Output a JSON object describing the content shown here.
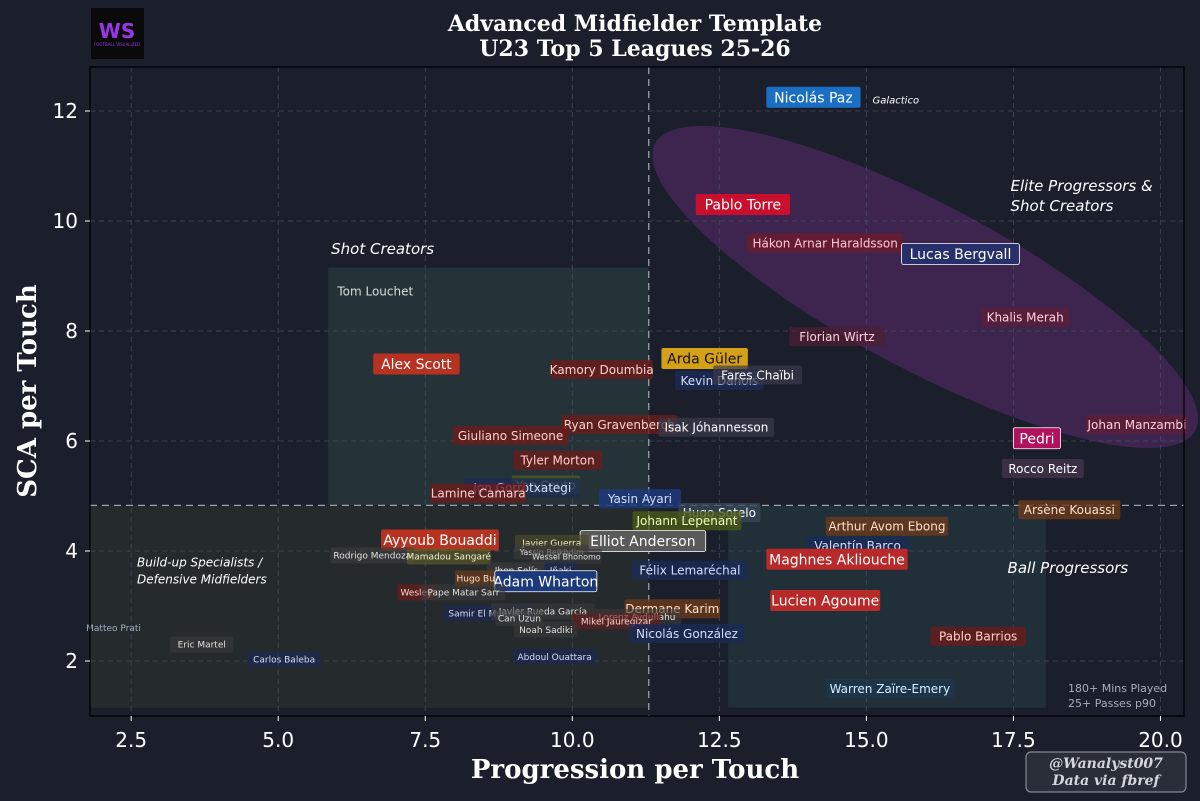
{
  "logo": {
    "text": "WS",
    "subtext": "FOOTBALL VISUALIZED"
  },
  "chart_data": {
    "type": "scatter",
    "title": "Advanced Midfielder Template",
    "subtitle": "U23 Top 5 Leagues 25-26",
    "xlabel": "Progression per Touch",
    "ylabel": "SCA per Touch",
    "xlim": [
      1.8,
      20.4
    ],
    "ylim": [
      1.0,
      12.8
    ],
    "xticks": [
      "2.5",
      "5.0",
      "7.5",
      "10.0",
      "12.5",
      "15.0",
      "17.5",
      "20.0"
    ],
    "xtick_values": [
      2.5,
      5.0,
      7.5,
      10.0,
      12.5,
      15.0,
      17.5,
      20.0
    ],
    "yticks": [
      "2",
      "4",
      "6",
      "8",
      "10",
      "12"
    ],
    "ytick_values": [
      2,
      4,
      6,
      8,
      10,
      12
    ],
    "grid": true,
    "x_threshold": 11.3,
    "y_threshold": 4.83,
    "zones": [
      {
        "name": "Shot Creators",
        "x0": 5.85,
        "x1": 11.3,
        "y0": 4.83,
        "y1": 9.15,
        "color": "#2a3a3c"
      },
      {
        "name": "Build-up Specialists",
        "x0": 1.8,
        "x1": 11.3,
        "y0": 1.15,
        "y1": 4.83,
        "color": "#2a2f2c"
      },
      {
        "name": "Ball Progressors",
        "x0": 12.65,
        "x1": 18.05,
        "y0": 1.15,
        "y1": 4.83,
        "color": "#24363c"
      }
    ],
    "ellipse": {
      "cx": 16.0,
      "cy": 8.8,
      "rx": 5.2,
      "ry": 2.55,
      "angle_deg": -28,
      "color": "#5a2a6e"
    },
    "region_labels": [
      {
        "lines": [
          "Shot Creators"
        ],
        "x": 5.9,
        "y": 9.4
      },
      {
        "lines": [
          "Elite Progressors &",
          "Shot Creators"
        ],
        "x": 17.45,
        "y": 10.55
      },
      {
        "lines": [
          "Build-up Specialists /",
          "Defensive Midfielders"
        ],
        "x": 2.6,
        "y": 3.72
      },
      {
        "lines": [
          "Ball Progressors"
        ],
        "x": 17.4,
        "y": 3.6
      }
    ],
    "legend_note": [
      "180+ Mins Played",
      "25+ Passes p90"
    ],
    "players": [
      {
        "name": "Nicolás Paz",
        "x": 14.1,
        "y": 12.25,
        "size": 14,
        "bg": "#1a6fc4",
        "fg": "#ffffff",
        "op": 1
      },
      {
        "name": "Galactico",
        "x": 15.5,
        "y": 12.2,
        "size": 10,
        "bg": "none",
        "fg": "#ffffff",
        "op": 0,
        "italic": true
      },
      {
        "name": "Pablo Torre",
        "x": 12.9,
        "y": 10.3,
        "size": 14,
        "bg": "#c8102e",
        "fg": "#ffffff",
        "op": 1
      },
      {
        "name": "Hákon Arnar Haraldsson",
        "x": 14.3,
        "y": 9.6,
        "size": 12,
        "bg": "#6b1c2c",
        "fg": "#ffc8d0",
        "op": 0.8
      },
      {
        "name": "Lucas Bergvall",
        "x": 16.6,
        "y": 9.4,
        "size": 14,
        "bg": "#27306a",
        "fg": "#ffffff",
        "op": 1,
        "stroke": "#ffffff"
      },
      {
        "name": "Khalis Merah",
        "x": 17.7,
        "y": 8.25,
        "size": 12,
        "bg": "#5d1e36",
        "fg": "#ffd0de",
        "op": 0.8
      },
      {
        "name": "Florian Wirtz",
        "x": 14.5,
        "y": 7.9,
        "size": 12,
        "bg": "#4f1d33",
        "fg": "#ffd0de",
        "op": 0.75
      },
      {
        "name": "Alex Scott",
        "x": 7.35,
        "y": 7.4,
        "size": 14,
        "bg": "#b83222",
        "fg": "#ffffff",
        "op": 1
      },
      {
        "name": "Arda Güler",
        "x": 12.25,
        "y": 7.5,
        "size": 14,
        "bg": "#d4a017",
        "fg": "#111111",
        "op": 1
      },
      {
        "name": "Kamory Doumbia",
        "x": 10.5,
        "y": 7.3,
        "size": 12,
        "bg": "#6b1c1c",
        "fg": "#ffd0c8",
        "op": 0.8
      },
      {
        "name": "Kevin Danois",
        "x": 12.5,
        "y": 7.1,
        "size": 12,
        "bg": "#1c2a56",
        "fg": "#d4dcff",
        "op": 0.8
      },
      {
        "name": "Fares Chaïbi",
        "x": 13.15,
        "y": 7.2,
        "size": 12,
        "bg": "#3a3a4a",
        "fg": "#ffffff",
        "op": 0.7
      },
      {
        "name": "Johan Manzambi",
        "x": 19.6,
        "y": 6.3,
        "size": 12,
        "bg": "#5d1e36",
        "fg": "#ffd0de",
        "op": 0.8
      },
      {
        "name": "Pedri",
        "x": 17.9,
        "y": 6.05,
        "size": 14,
        "bg": "#b0125e",
        "fg": "#ffffff",
        "op": 1,
        "stroke": "#ffffff"
      },
      {
        "name": "Rocco Reitz",
        "x": 18.0,
        "y": 5.5,
        "size": 12,
        "bg": "#46354e",
        "fg": "#ffffff",
        "op": 0.75
      },
      {
        "name": "Ryan Gravenberch",
        "x": 10.8,
        "y": 6.3,
        "size": 12,
        "bg": "#6b1c1c",
        "fg": "#ffd0c8",
        "op": 0.8
      },
      {
        "name": "Isak Jóhannesson",
        "x": 12.45,
        "y": 6.25,
        "size": 12,
        "bg": "#3a3a4a",
        "fg": "#ffffff",
        "op": 0.75
      },
      {
        "name": "Giuliano Simeone",
        "x": 8.95,
        "y": 6.1,
        "size": 12,
        "bg": "#6b1c1c",
        "fg": "#ffd0c8",
        "op": 0.8
      },
      {
        "name": "Tyler Morton",
        "x": 9.75,
        "y": 5.65,
        "size": 12,
        "bg": "#6b1c1c",
        "fg": "#ffd0c8",
        "op": 0.8
      },
      {
        "name": "Yan Couto",
        "x": 9.55,
        "y": 5.2,
        "size": 12,
        "bg": "#4a5a1a",
        "fg": "#f0ffb0",
        "op": 0.8
      },
      {
        "name": "Jon Gorrotxategi",
        "x": 9.15,
        "y": 5.15,
        "size": 12,
        "bg": "#1c2a56",
        "fg": "#d4dcff",
        "op": 0.8
      },
      {
        "name": "Lamine Camara",
        "x": 8.4,
        "y": 5.05,
        "size": 12,
        "bg": "#6b1c1c",
        "fg": "#ffd0c8",
        "op": 0.8
      },
      {
        "name": "Yasin Ayari",
        "x": 11.15,
        "y": 4.95,
        "size": 12,
        "bg": "#1c3a7a",
        "fg": "#d4dcff",
        "op": 0.85
      },
      {
        "name": "Hugo Sotelo",
        "x": 12.5,
        "y": 4.7,
        "size": 12,
        "bg": "#3a4a5a",
        "fg": "#ffffff",
        "op": 0.75
      },
      {
        "name": "Johann Lepenant",
        "x": 11.95,
        "y": 4.55,
        "size": 12,
        "bg": "#4a5a1a",
        "fg": "#f0ffb0",
        "op": 0.8
      },
      {
        "name": "Arsène Kouassi",
        "x": 18.45,
        "y": 4.75,
        "size": 12,
        "bg": "#6b3a1c",
        "fg": "#ffe0c8",
        "op": 0.8
      },
      {
        "name": "Arthur Avom Ebong",
        "x": 15.35,
        "y": 4.45,
        "size": 12,
        "bg": "#6b3a1c",
        "fg": "#ffe0c8",
        "op": 0.8
      },
      {
        "name": "Ayyoub Bouaddi",
        "x": 7.75,
        "y": 4.2,
        "size": 14,
        "bg": "#b83222",
        "fg": "#ffffff",
        "op": 1
      },
      {
        "name": "Elliot Anderson",
        "x": 11.2,
        "y": 4.18,
        "size": 14,
        "bg": "#5a5a5a",
        "fg": "#ffffff",
        "op": 1,
        "stroke": "#ffffff"
      },
      {
        "name": "Javier Guerra",
        "x": 9.65,
        "y": 4.15,
        "size": 9,
        "bg": "#4a4a2a",
        "fg": "#f0f0d0",
        "op": 0.7
      },
      {
        "name": "Valentín Barco",
        "x": 14.85,
        "y": 4.1,
        "size": 12,
        "bg": "#1c2a56",
        "fg": "#d4dcff",
        "op": 0.8
      },
      {
        "name": "Maghnes Akliouche",
        "x": 14.5,
        "y": 3.85,
        "size": 14,
        "bg": "#b82a2a",
        "fg": "#ffffff",
        "op": 1
      },
      {
        "name": "Rodrigo Mendoza",
        "x": 6.6,
        "y": 3.92,
        "size": 9,
        "bg": "#3a3a3a",
        "fg": "#e0e0e0",
        "op": 0.7
      },
      {
        "name": "Mamadou Sangaré",
        "x": 7.9,
        "y": 3.9,
        "size": 9,
        "bg": "#5a5a2a",
        "fg": "#f0f0d0",
        "op": 0.7
      },
      {
        "name": "Yassin Belkhdim",
        "x": 9.65,
        "y": 3.98,
        "size": 8,
        "bg": "#3a3a3a",
        "fg": "#e0e0e0",
        "op": 0.6
      },
      {
        "name": "Wessel Bhonomo",
        "x": 9.9,
        "y": 3.9,
        "size": 8,
        "bg": "#3a3a3a",
        "fg": "#e0e0e0",
        "op": 0.6
      },
      {
        "name": "Jhon Solís",
        "x": 9.05,
        "y": 3.65,
        "size": 9,
        "bg": "#3a3a3a",
        "fg": "#e0e0e0",
        "op": 0.7
      },
      {
        "name": "Iñaki",
        "x": 9.8,
        "y": 3.65,
        "size": 9,
        "bg": "#1c2a56",
        "fg": "#d4dcff",
        "op": 0.6
      },
      {
        "name": "Félix Lemaréchal",
        "x": 12.0,
        "y": 3.65,
        "size": 12,
        "bg": "#1c2a56",
        "fg": "#d4dcff",
        "op": 0.8
      },
      {
        "name": "Hugo Bueno",
        "x": 8.5,
        "y": 3.5,
        "size": 9,
        "bg": "#6b3a1c",
        "fg": "#ffe0c8",
        "op": 0.7
      },
      {
        "name": "Adam Wharton",
        "x": 9.55,
        "y": 3.45,
        "size": 14,
        "bg": "#1c3a7a",
        "fg": "#ffffff",
        "op": 1,
        "stroke": "#ffffff"
      },
      {
        "name": "Wesley",
        "x": 7.35,
        "y": 3.25,
        "size": 9,
        "bg": "#6b1c1c",
        "fg": "#ffd0c8",
        "op": 0.7
      },
      {
        "name": "Pape Matar Sarr",
        "x": 8.15,
        "y": 3.25,
        "size": 9,
        "bg": "#3a3a3a",
        "fg": "#e0e0e0",
        "op": 0.6
      },
      {
        "name": "Lucien Agoume",
        "x": 14.3,
        "y": 3.1,
        "size": 14,
        "bg": "#b82a2a",
        "fg": "#ffffff",
        "op": 1
      },
      {
        "name": "Dermane Karim",
        "x": 11.7,
        "y": 2.95,
        "size": 12,
        "bg": "#6b3a1c",
        "fg": "#ffe0c8",
        "op": 0.8
      },
      {
        "name": "Samir El Mourabet",
        "x": 8.6,
        "y": 2.87,
        "size": 9,
        "bg": "#1c2a56",
        "fg": "#d4dcff",
        "op": 0.6
      },
      {
        "name": "Javier Rueda García",
        "x": 9.5,
        "y": 2.9,
        "size": 9,
        "bg": "#3a3a3a",
        "fg": "#e0e0e0",
        "op": 0.6
      },
      {
        "name": "Can Uzun",
        "x": 9.1,
        "y": 2.78,
        "size": 9,
        "bg": "#3a3a3a",
        "fg": "#e0e0e0",
        "op": 0.6
      },
      {
        "name": "Lorenz Avdullahu",
        "x": 11.1,
        "y": 2.8,
        "size": 9,
        "bg": "#3a3a3a",
        "fg": "#e0e0e0",
        "op": 0.6
      },
      {
        "name": "Mikel Jauregizar",
        "x": 10.75,
        "y": 2.72,
        "size": 9,
        "bg": "#6b1c1c",
        "fg": "#ffd0c8",
        "op": 0.6
      },
      {
        "name": "Noah Sadiki",
        "x": 9.55,
        "y": 2.57,
        "size": 9,
        "bg": "#3a3a3a",
        "fg": "#e0e0e0",
        "op": 0.6
      },
      {
        "name": "Nicolás González",
        "x": 11.95,
        "y": 2.5,
        "size": 12,
        "bg": "#1c2a56",
        "fg": "#d4dcff",
        "op": 0.8
      },
      {
        "name": "Pablo Barrios",
        "x": 16.9,
        "y": 2.45,
        "size": 12,
        "bg": "#6b1c1c",
        "fg": "#ffd0c8",
        "op": 0.8
      },
      {
        "name": "Matteo Prati",
        "x": 2.2,
        "y": 2.6,
        "size": 9,
        "bg": "none",
        "fg": "#9eb0c8",
        "op": 0
      },
      {
        "name": "Eric Martel",
        "x": 3.7,
        "y": 2.3,
        "size": 9,
        "bg": "#3a3a3a",
        "fg": "#e0e0e0",
        "op": 0.6
      },
      {
        "name": "Carlos Baleba",
        "x": 5.1,
        "y": 2.03,
        "size": 9,
        "bg": "#1c2a56",
        "fg": "#d4dcff",
        "op": 0.6
      },
      {
        "name": "Abdoul Ouattara",
        "x": 9.7,
        "y": 2.08,
        "size": 9,
        "bg": "#1c2a56",
        "fg": "#d4dcff",
        "op": 0.6
      },
      {
        "name": "Warren Zaïre-Emery",
        "x": 15.4,
        "y": 1.5,
        "size": 12,
        "bg": "#1c3a56",
        "fg": "#d4f0ff",
        "op": 0.5
      },
      {
        "name": "Tom Louchet",
        "x": 6.65,
        "y": 8.72,
        "size": 12,
        "bg": "none",
        "fg": "#d8dcdc",
        "op": 0
      }
    ]
  },
  "credit": {
    "line1": "@Wanalyst007",
    "line2": "Data via fbref"
  }
}
